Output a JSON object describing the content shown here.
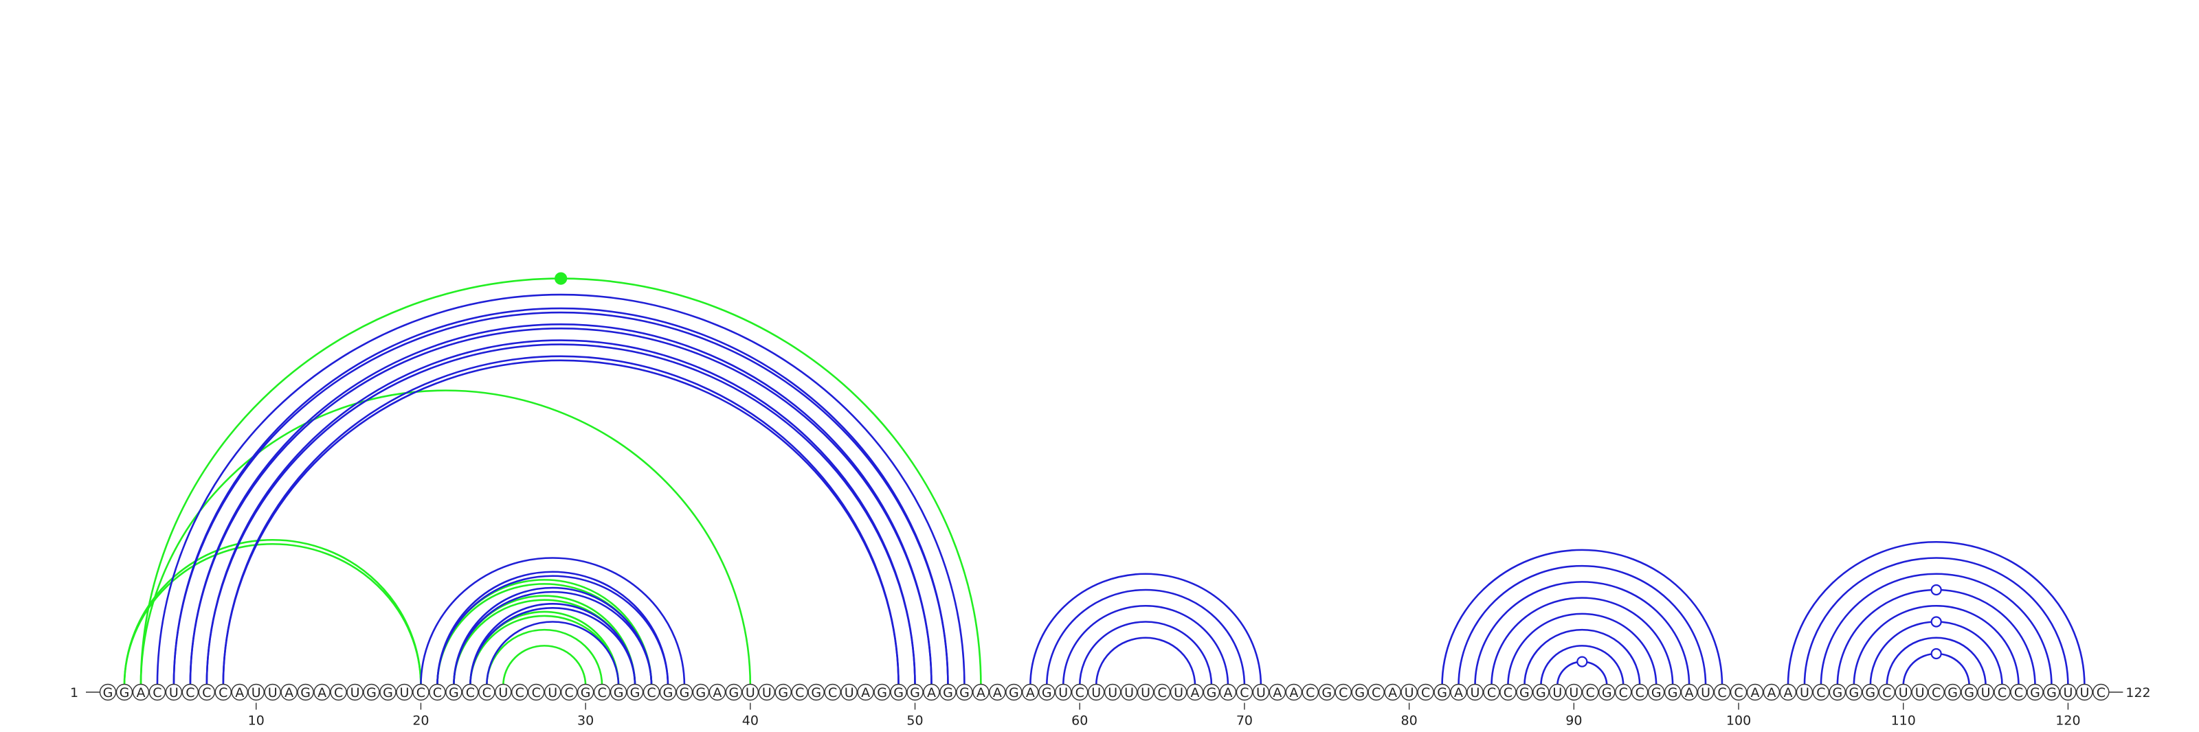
{
  "diagram": {
    "type": "rna-arc-diagram",
    "sequence": "GGACUCCCAUUAGACUGGUCCGCCUCCUCGCGGCGGGAGUUGCGCUAGGGAGGAAGAGUCUUUUCUAGACUAACGCGCAUCGAUCCGGUUCGCCGGAUCCAAAUCGGGCUUCGGUCCGGUUC",
    "length": 122,
    "start_label": "1",
    "end_label": "122",
    "tick_positions": [
      10,
      20,
      30,
      40,
      50,
      60,
      70,
      80,
      90,
      100,
      110,
      120
    ],
    "colors": {
      "blue": "#1f1fd6",
      "green": "#22ee22",
      "backbone": "#333333"
    },
    "blue_pairs": [
      [
        4,
        53
      ],
      [
        5,
        52
      ],
      [
        6,
        51
      ],
      [
        7,
        50
      ],
      [
        8,
        49
      ],
      [
        20,
        36
      ],
      [
        21,
        35
      ],
      [
        22,
        34
      ],
      [
        23,
        33
      ],
      [
        24,
        32
      ],
      [
        57,
        71
      ],
      [
        58,
        70
      ],
      [
        59,
        69
      ],
      [
        60,
        68
      ],
      [
        61,
        67
      ],
      [
        82,
        99
      ],
      [
        83,
        98
      ],
      [
        84,
        97
      ],
      [
        85,
        96
      ],
      [
        86,
        95
      ],
      [
        87,
        94
      ],
      [
        88,
        93
      ],
      [
        89,
        92
      ],
      [
        103,
        121
      ],
      [
        104,
        120
      ],
      [
        105,
        119
      ],
      [
        106,
        118
      ],
      [
        107,
        117
      ],
      [
        108,
        116
      ],
      [
        109,
        115
      ],
      [
        110,
        114
      ]
    ],
    "double_blue_pairs": [
      [
        5,
        52
      ],
      [
        6,
        51
      ],
      [
        7,
        50
      ],
      [
        8,
        49
      ],
      [
        21,
        35
      ],
      [
        22,
        34
      ],
      [
        23,
        33
      ]
    ],
    "green_pairs": [
      [
        3,
        54
      ],
      [
        3,
        40
      ],
      [
        2,
        20
      ],
      [
        21,
        34
      ],
      [
        22,
        33
      ],
      [
        23,
        32
      ],
      [
        24,
        31
      ],
      [
        25,
        30
      ]
    ],
    "double_green_pairs": [
      [
        2,
        20
      ],
      [
        21,
        34
      ],
      [
        22,
        33
      ],
      [
        23,
        32
      ]
    ],
    "arc_markers": [
      {
        "pair": [
          3,
          54
        ],
        "color": "green",
        "filled": true
      },
      {
        "pair": [
          89,
          92
        ],
        "color": "blue",
        "filled": false
      },
      {
        "pair": [
          106,
          118
        ],
        "color": "blue",
        "filled": false
      },
      {
        "pair": [
          108,
          116
        ],
        "color": "blue",
        "filled": false
      },
      {
        "pair": [
          110,
          114
        ],
        "color": "blue",
        "filled": false
      }
    ]
  }
}
